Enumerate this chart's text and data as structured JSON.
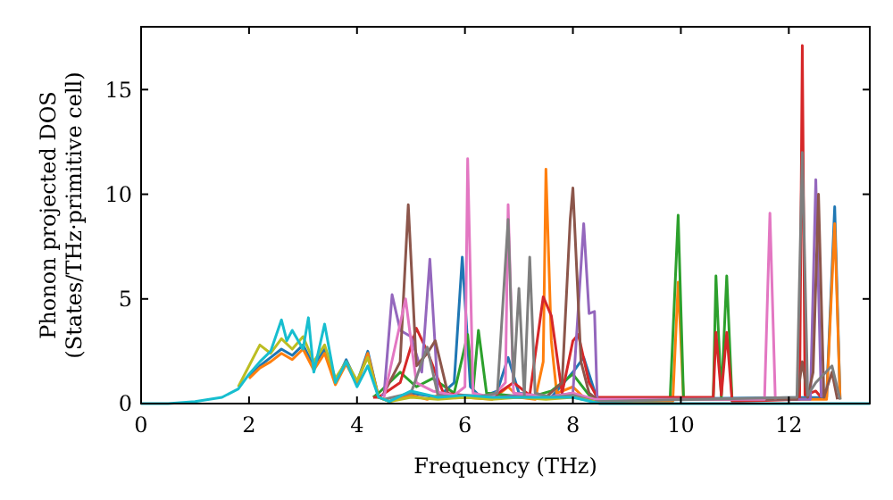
{
  "chart_data": {
    "type": "line",
    "xlabel": "Frequency (THz)",
    "ylabel": "Phonon projected DOS\n(States/THz·primitive cell)",
    "xlim": [
      0,
      13.5
    ],
    "ylim": [
      0,
      18
    ],
    "xticks": [
      0,
      2,
      4,
      6,
      8,
      10,
      12
    ],
    "yticks": [
      0,
      5,
      10,
      15
    ],
    "grid": false,
    "line_style": "solid",
    "series": [
      {
        "color": "#1f77b4",
        "x": [
          2,
          2.2,
          2.4,
          2.6,
          2.8,
          3,
          3.2,
          3.4,
          3.6,
          3.8,
          4,
          4.2,
          4.4,
          4.6,
          5,
          5.5,
          5.8,
          5.95,
          6.1,
          6.3,
          6.6,
          6.8,
          7,
          7.3,
          7.6,
          8,
          8.2,
          8.45,
          12.7,
          12.85,
          12.95
        ],
        "values": [
          1.3,
          1.8,
          2.2,
          2.6,
          2.3,
          2.8,
          1.8,
          2.6,
          1.0,
          2.1,
          1.0,
          2.5,
          0.3,
          0.1,
          0.5,
          0.3,
          1.0,
          7.0,
          0.8,
          0.3,
          0.6,
          2.2,
          0.5,
          0.4,
          0.3,
          1.5,
          2.2,
          0.2,
          0.3,
          9.4,
          0.2
        ]
      },
      {
        "color": "#ff7f0e",
        "x": [
          2,
          2.2,
          2.4,
          2.6,
          2.8,
          3,
          3.2,
          3.4,
          3.6,
          3.8,
          4,
          4.2,
          4.4,
          4.6,
          5,
          5.3,
          5.6,
          6,
          6.5,
          6.8,
          7,
          7.3,
          7.45,
          7.5,
          7.6,
          7.7,
          8,
          8.2,
          8.4,
          9.85,
          9.95,
          10.05,
          12.7,
          12.85,
          12.95
        ],
        "values": [
          1.2,
          1.7,
          2.0,
          2.4,
          2.1,
          2.6,
          1.6,
          2.4,
          0.9,
          1.9,
          0.9,
          2.4,
          0.3,
          0.1,
          0.4,
          0.2,
          0.5,
          0.3,
          0.2,
          0.8,
          0.3,
          0.2,
          2.0,
          11.2,
          3.0,
          0.5,
          0.8,
          0.3,
          0.1,
          0.1,
          5.8,
          0.2,
          0.2,
          8.6,
          0.2
        ]
      },
      {
        "color": "#2ca02c",
        "x": [
          4.3,
          4.4,
          4.8,
          5.1,
          5.4,
          5.8,
          6.05,
          6.15,
          6.25,
          6.4,
          6.8,
          7.2,
          7.6,
          8,
          8.3,
          8.45,
          9.8,
          9.95,
          10.05,
          10.6,
          10.65,
          10.75,
          10.85,
          10.95
        ],
        "values": [
          0.3,
          0.5,
          1.5,
          0.8,
          1.2,
          0.5,
          3.3,
          0.6,
          3.5,
          0.5,
          0.4,
          0.3,
          0.6,
          1.4,
          0.4,
          0.1,
          0.2,
          9.0,
          0.2,
          0.2,
          6.1,
          0.3,
          6.1,
          0.1
        ]
      },
      {
        "color": "#d62728",
        "x": [
          4.3,
          4.4,
          4.8,
          5.1,
          5.3,
          5.6,
          6,
          6.5,
          6.9,
          7.2,
          7.45,
          7.6,
          7.8,
          8,
          8.1,
          8.3,
          8.45,
          10.6,
          10.65,
          10.75,
          10.85,
          10.95,
          12.2,
          12.25,
          12.3,
          12.5,
          12.6
        ],
        "values": [
          0.3,
          0.3,
          1.0,
          3.6,
          2.5,
          0.5,
          0.4,
          0.3,
          1.0,
          0.4,
          5.1,
          4.2,
          0.5,
          3.0,
          3.3,
          1.0,
          0.3,
          0.3,
          3.4,
          0.4,
          3.4,
          0.1,
          0.2,
          17.1,
          0.4,
          0.6,
          0.3
        ]
      },
      {
        "color": "#9467bd",
        "x": [
          4.45,
          4.5,
          4.65,
          4.8,
          5.0,
          5.2,
          5.35,
          5.5,
          5.8,
          6.2,
          6.6,
          7,
          7.5,
          8,
          8.2,
          8.3,
          8.4,
          8.45,
          12.4,
          12.5,
          12.6
        ],
        "values": [
          0.4,
          0.4,
          5.2,
          3.5,
          3.2,
          1.5,
          6.9,
          0.5,
          0.3,
          0.4,
          0.3,
          0.4,
          0.3,
          0.5,
          8.6,
          4.3,
          4.4,
          0.2,
          0.2,
          10.7,
          0.3
        ]
      },
      {
        "color": "#8c564b",
        "x": [
          4.5,
          4.8,
          4.95,
          5.1,
          5.3,
          5.45,
          5.7,
          6.2,
          6.6,
          7,
          7.5,
          7.8,
          7.95,
          8.0,
          8.15,
          8.3,
          8.45,
          12.15,
          12.25,
          12.35,
          12.45,
          12.55,
          12.65,
          12.8,
          12.9
        ],
        "values": [
          0.5,
          2.0,
          9.5,
          1.8,
          2.4,
          3.0,
          0.3,
          0.3,
          0.3,
          0.3,
          0.3,
          1.0,
          8.8,
          10.3,
          2.0,
          0.5,
          0.2,
          0.2,
          2.0,
          0.3,
          1.5,
          10.0,
          0.3,
          1.5,
          0.2
        ]
      },
      {
        "color": "#e377c2",
        "x": [
          4.5,
          4.9,
          5.1,
          5.4,
          5.8,
          6.0,
          6.05,
          6.15,
          6.5,
          6.75,
          6.8,
          6.9,
          7.3,
          7.6,
          8,
          8.4,
          11.55,
          11.65,
          11.75
        ],
        "values": [
          0.3,
          5.0,
          1.0,
          0.6,
          0.4,
          0.8,
          11.7,
          0.5,
          0.3,
          1.0,
          9.5,
          0.5,
          0.4,
          0.3,
          0.5,
          0.2,
          0.2,
          9.1,
          0.2
        ]
      },
      {
        "color": "#7f7f7f",
        "x": [
          4.5,
          5,
          5.3,
          5.5,
          5.8,
          6.2,
          6.6,
          6.8,
          6.9,
          7.0,
          7.1,
          7.2,
          7.3,
          7.6,
          8,
          8.4,
          12.15,
          12.25,
          12.35,
          12.5,
          12.8,
          12.95
        ],
        "values": [
          0.2,
          0.5,
          2.7,
          0.4,
          0.3,
          0.3,
          0.5,
          8.8,
          1.0,
          5.5,
          0.4,
          7.0,
          0.5,
          0.3,
          0.4,
          0.1,
          0.3,
          12.0,
          0.4,
          1.0,
          1.8,
          0.2
        ]
      },
      {
        "color": "#bcbd22",
        "x": [
          1.8,
          2,
          2.2,
          2.4,
          2.6,
          2.8,
          3,
          3.2,
          3.4,
          3.6,
          3.8,
          4,
          4.2,
          4.4,
          4.6,
          5,
          5.5,
          6,
          6.5,
          7,
          7.5,
          8,
          8.4
        ],
        "values": [
          0.8,
          1.8,
          2.8,
          2.4,
          3.1,
          2.6,
          3.2,
          2.0,
          2.8,
          1.2,
          2.0,
          1.1,
          2.2,
          0.3,
          0.1,
          0.3,
          0.2,
          0.3,
          0.2,
          0.3,
          0.2,
          0.3,
          0.1
        ]
      },
      {
        "color": "#17becf",
        "x": [
          0,
          0.5,
          1,
          1.5,
          1.8,
          2,
          2.2,
          2.4,
          2.6,
          2.7,
          2.8,
          3,
          3.1,
          3.2,
          3.4,
          3.6,
          3.8,
          4,
          4.2,
          4.4,
          4.6,
          5,
          5.5,
          6,
          6.5,
          7,
          7.5,
          8,
          8.5,
          13.5
        ],
        "values": [
          0,
          0,
          0.1,
          0.3,
          0.7,
          1.4,
          2.0,
          2.5,
          4.0,
          3.0,
          3.5,
          2.6,
          4.1,
          1.5,
          3.8,
          1.0,
          2.0,
          0.8,
          1.8,
          0.3,
          0.1,
          0.6,
          0.3,
          0.4,
          0.3,
          0.3,
          0.3,
          0.3,
          0,
          0
        ]
      }
    ]
  }
}
